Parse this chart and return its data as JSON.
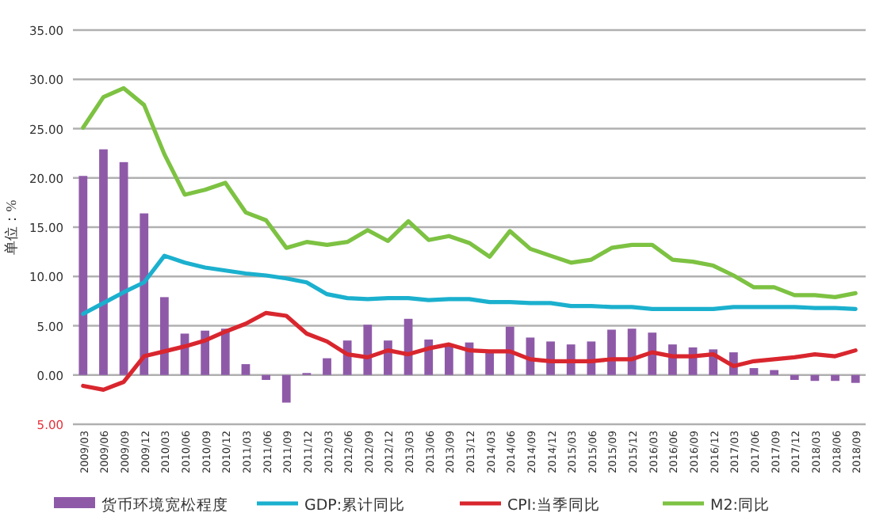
{
  "chart_data": {
    "type": "bar",
    "ylabel": "单位：%",
    "categories": [
      "2009/03",
      "2009/06",
      "2009/09",
      "2009/12",
      "2010/03",
      "2010/06",
      "2010/09",
      "2010/12",
      "2011/03",
      "2011/06",
      "2011/09",
      "2011/12",
      "2012/03",
      "2012/06",
      "2012/09",
      "2012/12",
      "2013/03",
      "2013/06",
      "2013/09",
      "2013/12",
      "2014/03",
      "2014/06",
      "2014/09",
      "2014/12",
      "2015/03",
      "2015/06",
      "2015/09",
      "2015/12",
      "2016/03",
      "2016/06",
      "2016/09",
      "2016/12",
      "2017/03",
      "2017/06",
      "2017/09",
      "2017/12",
      "2018/03",
      "2018/06",
      "2018/09"
    ],
    "series": [
      {
        "name": "货币环境宽松程度",
        "color": "#8e5aa8",
        "values": [
          20.2,
          22.9,
          21.6,
          16.4,
          7.9,
          4.2,
          4.5,
          4.7,
          1.1,
          -0.5,
          -2.8,
          0.2,
          1.7,
          3.5,
          5.1,
          3.5,
          5.7,
          3.6,
          3.1,
          3.3,
          2.3,
          4.9,
          3.8,
          3.4,
          3.1,
          3.4,
          4.6,
          4.7,
          4.3,
          3.1,
          2.8,
          2.6,
          2.3,
          0.7,
          0.5,
          -0.5,
          -0.6,
          -0.6,
          -0.8
        ]
      },
      {
        "name": "GDP:累计同比",
        "type": "line",
        "color": "#1bb0ce",
        "values": [
          6.2,
          7.3,
          8.4,
          9.4,
          12.1,
          11.4,
          10.9,
          10.6,
          10.3,
          10.1,
          9.8,
          9.4,
          8.2,
          7.8,
          7.7,
          7.8,
          7.8,
          7.6,
          7.7,
          7.7,
          7.4,
          7.4,
          7.3,
          7.3,
          7.0,
          7.0,
          6.9,
          6.9,
          6.7,
          6.7,
          6.7,
          6.7,
          6.9,
          6.9,
          6.9,
          6.9,
          6.8,
          6.8,
          6.7
        ]
      },
      {
        "name": "CPI:当季同比",
        "type": "line",
        "color": "#d9262e",
        "values": [
          -1.1,
          -1.5,
          -0.7,
          1.9,
          2.4,
          2.9,
          3.5,
          4.4,
          5.2,
          6.3,
          6.0,
          4.2,
          3.4,
          2.1,
          1.8,
          2.5,
          2.1,
          2.7,
          3.1,
          2.5,
          2.4,
          2.4,
          1.6,
          1.4,
          1.4,
          1.4,
          1.6,
          1.6,
          2.3,
          1.9,
          1.9,
          2.1,
          0.9,
          1.4,
          1.6,
          1.8,
          2.1,
          1.9,
          2.5
        ]
      },
      {
        "name": "M2:同比",
        "type": "line",
        "color": "#7dc242",
        "values": [
          25.1,
          28.2,
          29.1,
          27.4,
          22.4,
          18.3,
          18.8,
          19.5,
          16.5,
          15.7,
          12.9,
          13.5,
          13.2,
          13.5,
          14.7,
          13.6,
          15.6,
          13.7,
          14.1,
          13.4,
          12.0,
          14.6,
          12.8,
          12.1,
          11.4,
          11.7,
          12.9,
          13.2,
          13.2,
          11.7,
          11.5,
          11.1,
          10.1,
          8.9,
          8.9,
          8.1,
          8.1,
          7.9,
          8.3
        ]
      }
    ],
    "ylim": [
      -5,
      35
    ],
    "yticks": [
      {
        "value": -5,
        "label": "5.00"
      },
      {
        "value": 0,
        "label": "0.00"
      },
      {
        "value": 5,
        "label": "5.00"
      },
      {
        "value": 10,
        "label": "10.00"
      },
      {
        "value": 15,
        "label": "15.00"
      },
      {
        "value": 20,
        "label": "20.00"
      },
      {
        "value": 25,
        "label": "25.00"
      },
      {
        "value": 30,
        "label": "30.00"
      },
      {
        "value": 35,
        "label": "35.00"
      }
    ],
    "grid": "y",
    "legend": "bottom"
  }
}
